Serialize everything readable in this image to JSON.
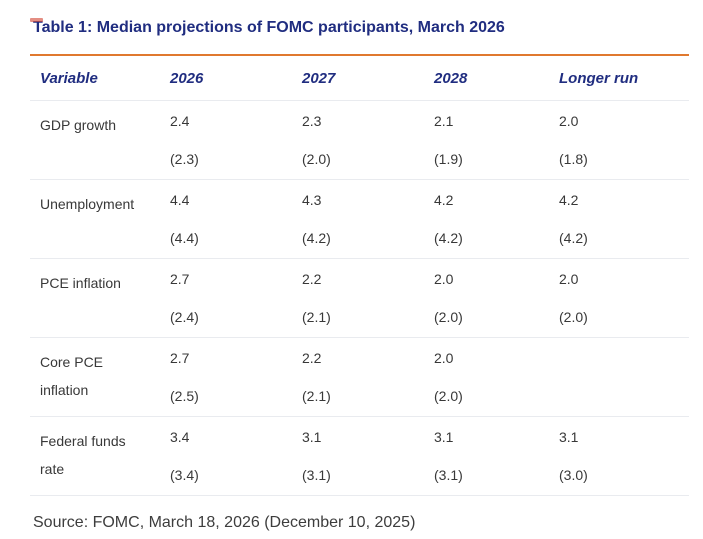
{
  "title": "Table 1: Median projections of FOMC participants, March 2026",
  "table": {
    "columns": [
      "Variable",
      "2026",
      "2027",
      "2028",
      "Longer run"
    ],
    "rows": [
      {
        "variable": "GDP growth",
        "values": [
          "2.4",
          "2.3",
          "2.1",
          "2.0"
        ],
        "previous": [
          "(2.3)",
          "(2.0)",
          "(1.9)",
          "(1.8)"
        ]
      },
      {
        "variable": "Unemployment",
        "values": [
          "4.4",
          "4.3",
          "4.2",
          "4.2"
        ],
        "previous": [
          "(4.4)",
          "(4.2)",
          "(4.2)",
          "(4.2)"
        ]
      },
      {
        "variable": "PCE inflation",
        "values": [
          "2.7",
          "2.2",
          "2.0",
          "2.0"
        ],
        "previous": [
          "(2.4)",
          "(2.1)",
          "(2.0)",
          "(2.0)"
        ]
      },
      {
        "variable": "Core PCE inflation",
        "values": [
          "2.7",
          "2.2",
          "2.0",
          ""
        ],
        "previous": [
          "(2.5)",
          "(2.1)",
          "(2.0)",
          ""
        ]
      },
      {
        "variable": "Federal funds rate",
        "values": [
          "3.4",
          "3.1",
          "3.1",
          "3.1"
        ],
        "previous": [
          "(3.4)",
          "(3.1)",
          "(3.1)",
          "(3.0)"
        ]
      }
    ]
  },
  "source": "Source: FOMC, March 18, 2026 (December 10, 2025)",
  "colors": {
    "heading_navy": "#202d80",
    "rule_orange": "#e0792f",
    "divider_gray": "#e9ebef",
    "body_text": "#383838",
    "red_mark": "#d65240"
  }
}
